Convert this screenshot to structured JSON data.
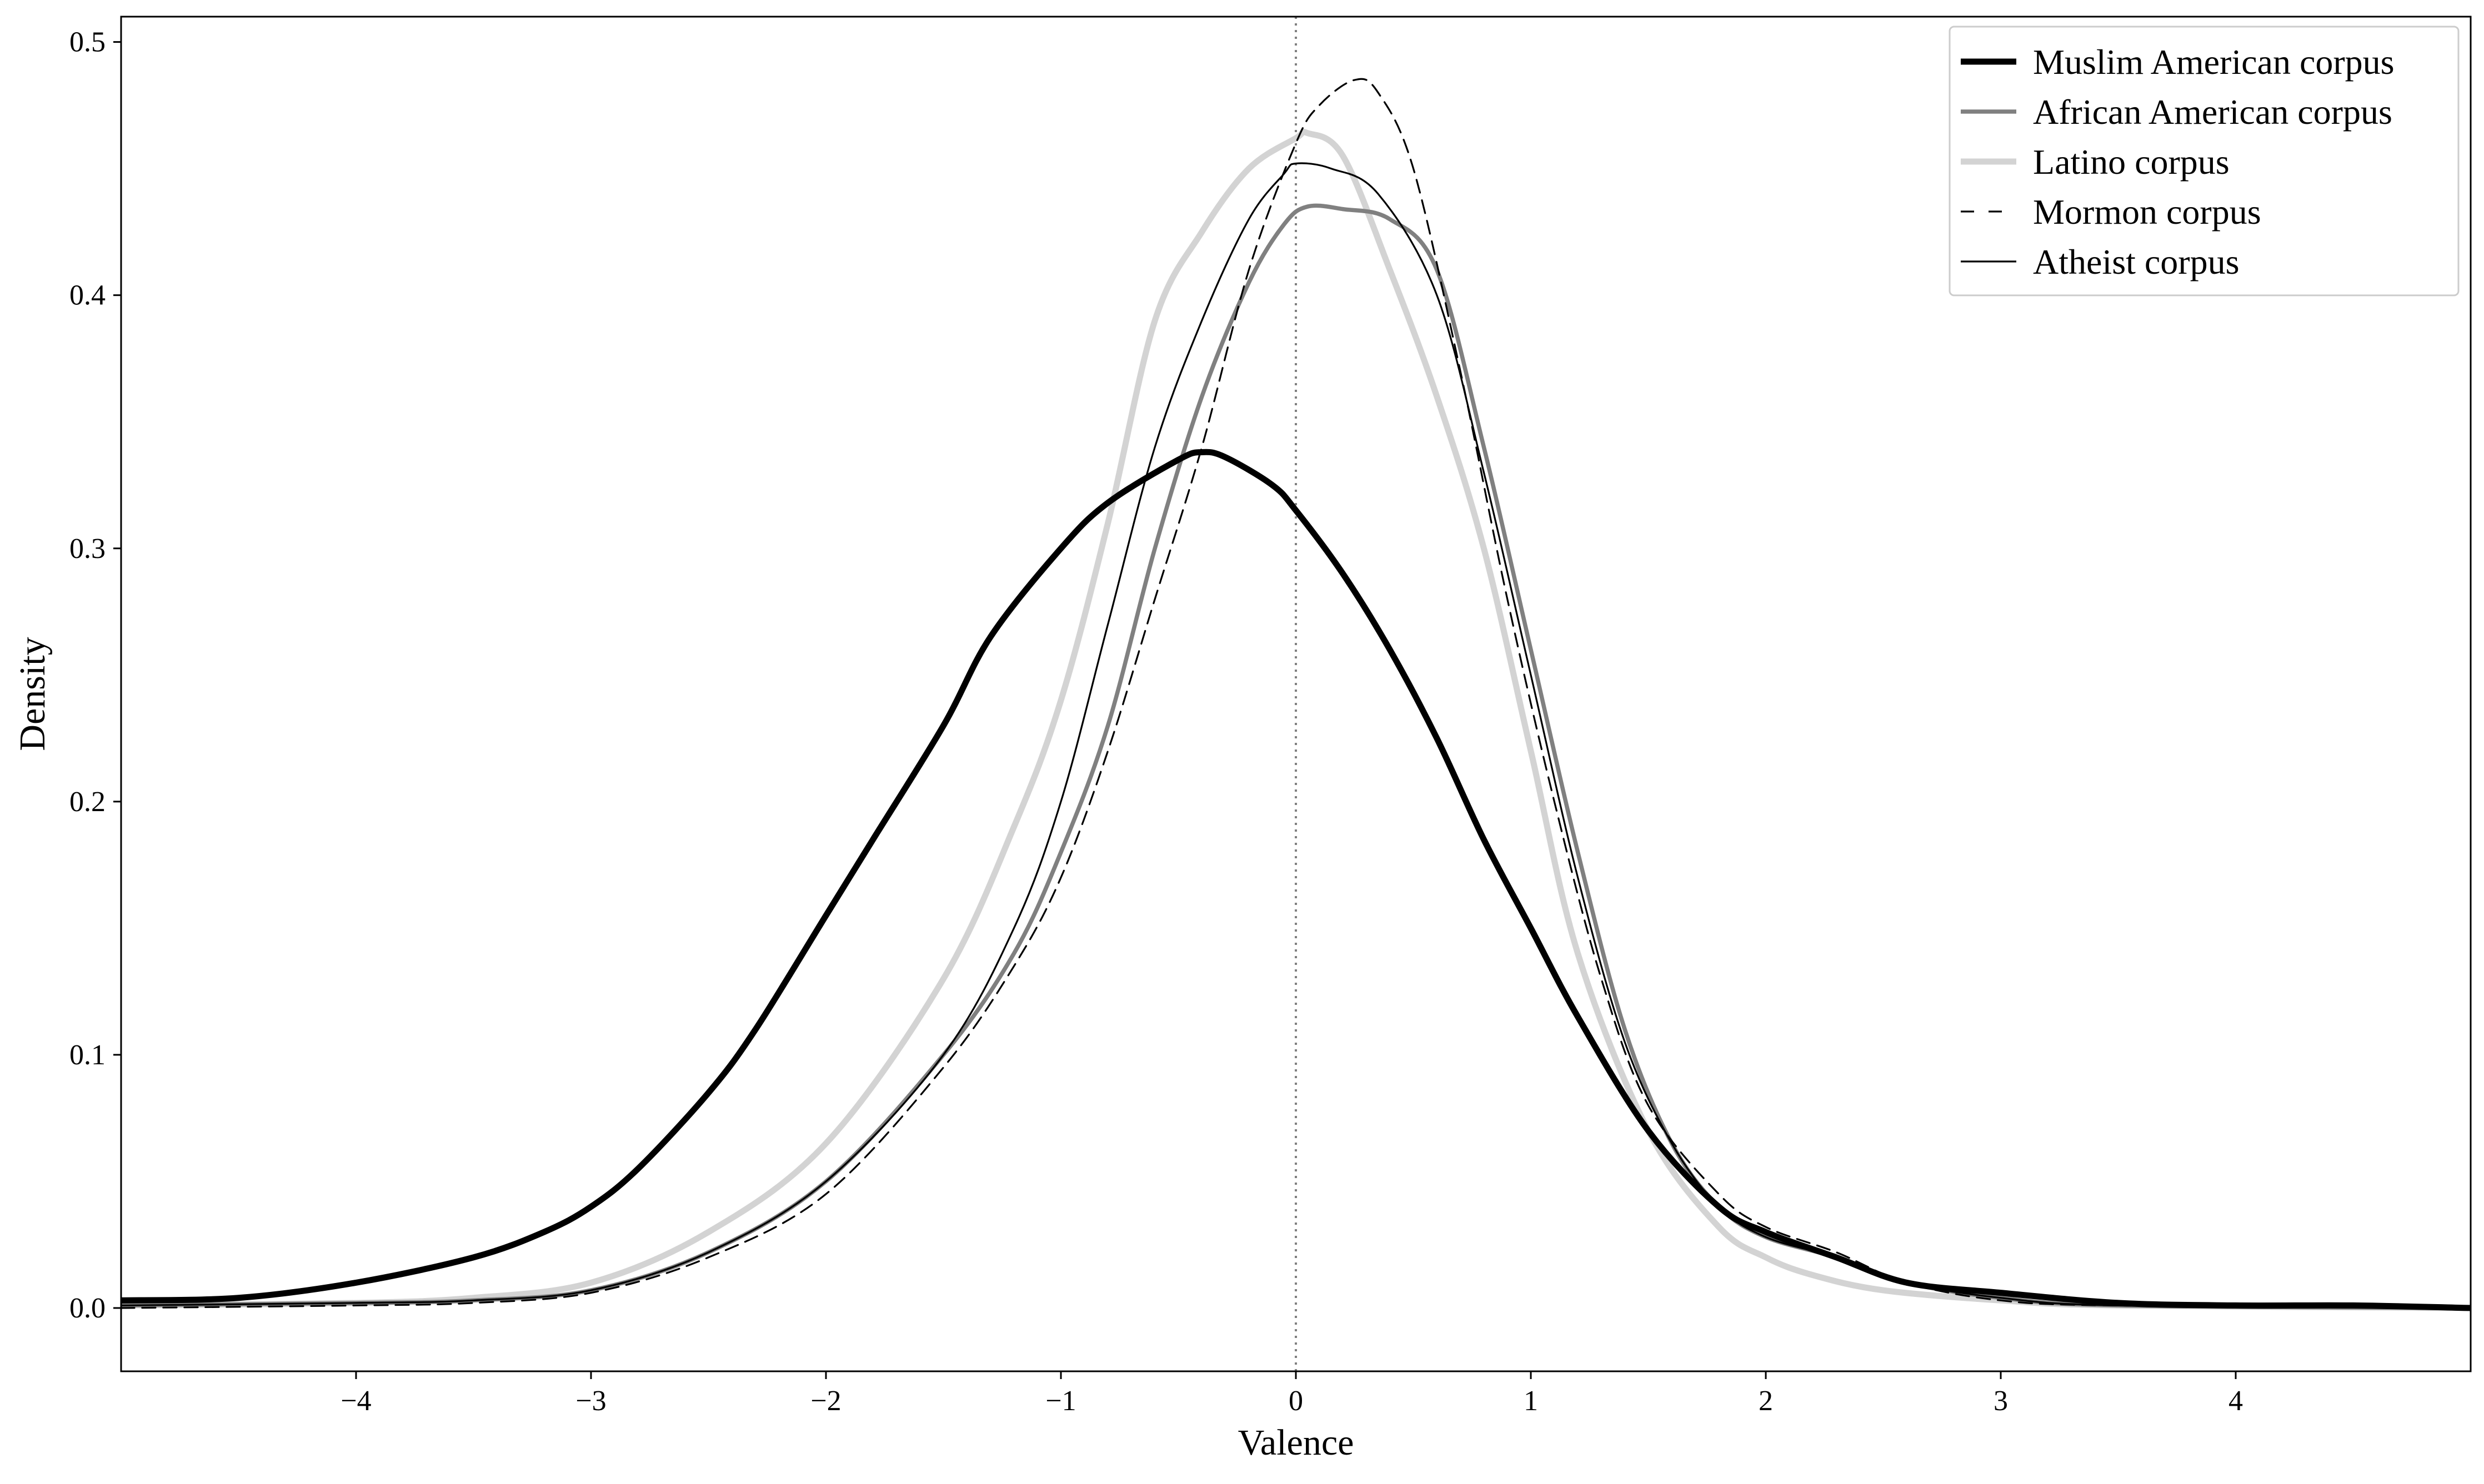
{
  "chart_data": {
    "type": "line",
    "title": "",
    "xlabel": "Valence",
    "ylabel": "Density",
    "xlim": [
      -5.0,
      5.0
    ],
    "ylim": [
      -0.025,
      0.51
    ],
    "xticks": [
      -4,
      -3,
      -2,
      -1,
      0,
      1,
      2,
      3,
      4
    ],
    "xtick_labels": [
      "−4",
      "−3",
      "−2",
      "−1",
      "0",
      "1",
      "2",
      "3",
      "4"
    ],
    "yticks": [
      0.0,
      0.1,
      0.2,
      0.3,
      0.4,
      0.5
    ],
    "ytick_labels": [
      "0.0",
      "0.1",
      "0.2",
      "0.3",
      "0.4",
      "0.5"
    ],
    "grid": false,
    "legend_position": "top-right",
    "reference_line": {
      "axis": "x",
      "value": 0,
      "style": "dotted",
      "color": "#808080"
    },
    "series": [
      {
        "name": "Muslim American corpus",
        "color": "#000000",
        "width": "thick",
        "dash": "solid",
        "points": [
          [
            -5.0,
            0.003
          ],
          [
            -4.5,
            0.004
          ],
          [
            -4.0,
            0.01
          ],
          [
            -3.5,
            0.02
          ],
          [
            -3.2,
            0.03
          ],
          [
            -3.0,
            0.04
          ],
          [
            -2.8,
            0.055
          ],
          [
            -2.5,
            0.085
          ],
          [
            -2.3,
            0.11
          ],
          [
            -2.0,
            0.155
          ],
          [
            -1.8,
            0.185
          ],
          [
            -1.5,
            0.23
          ],
          [
            -1.3,
            0.265
          ],
          [
            -1.0,
            0.3
          ],
          [
            -0.8,
            0.318
          ],
          [
            -0.5,
            0.335
          ],
          [
            -0.4,
            0.338
          ],
          [
            -0.3,
            0.336
          ],
          [
            -0.1,
            0.325
          ],
          [
            0.0,
            0.315
          ],
          [
            0.2,
            0.29
          ],
          [
            0.4,
            0.26
          ],
          [
            0.6,
            0.225
          ],
          [
            0.8,
            0.185
          ],
          [
            1.0,
            0.15
          ],
          [
            1.2,
            0.115
          ],
          [
            1.5,
            0.07
          ],
          [
            1.8,
            0.04
          ],
          [
            2.0,
            0.03
          ],
          [
            2.3,
            0.02
          ],
          [
            2.6,
            0.01
          ],
          [
            3.0,
            0.006
          ],
          [
            3.5,
            0.002
          ],
          [
            4.0,
            0.001
          ],
          [
            4.5,
            0.001
          ],
          [
            5.0,
            0.0
          ]
        ]
      },
      {
        "name": "African American corpus",
        "color": "#808080",
        "width": "medium",
        "dash": "solid",
        "points": [
          [
            -5.0,
            0.001
          ],
          [
            -4.0,
            0.002
          ],
          [
            -3.5,
            0.003
          ],
          [
            -3.0,
            0.007
          ],
          [
            -2.5,
            0.022
          ],
          [
            -2.0,
            0.05
          ],
          [
            -1.5,
            0.1
          ],
          [
            -1.2,
            0.14
          ],
          [
            -1.0,
            0.18
          ],
          [
            -0.8,
            0.23
          ],
          [
            -0.6,
            0.3
          ],
          [
            -0.4,
            0.36
          ],
          [
            -0.2,
            0.405
          ],
          [
            -0.05,
            0.428
          ],
          [
            0.05,
            0.435
          ],
          [
            0.2,
            0.434
          ],
          [
            0.4,
            0.43
          ],
          [
            0.6,
            0.41
          ],
          [
            0.8,
            0.34
          ],
          [
            1.0,
            0.26
          ],
          [
            1.2,
            0.18
          ],
          [
            1.4,
            0.11
          ],
          [
            1.6,
            0.065
          ],
          [
            1.8,
            0.04
          ],
          [
            2.0,
            0.028
          ],
          [
            2.3,
            0.02
          ],
          [
            2.6,
            0.01
          ],
          [
            3.0,
            0.004
          ],
          [
            3.5,
            0.001
          ],
          [
            5.0,
            0.0
          ]
        ]
      },
      {
        "name": "Latino corpus",
        "color": "#d3d3d3",
        "width": "thick",
        "dash": "solid",
        "points": [
          [
            -5.0,
            0.001
          ],
          [
            -4.0,
            0.002
          ],
          [
            -3.5,
            0.004
          ],
          [
            -3.0,
            0.01
          ],
          [
            -2.5,
            0.03
          ],
          [
            -2.0,
            0.065
          ],
          [
            -1.5,
            0.13
          ],
          [
            -1.2,
            0.19
          ],
          [
            -1.0,
            0.24
          ],
          [
            -0.8,
            0.31
          ],
          [
            -0.6,
            0.39
          ],
          [
            -0.4,
            0.425
          ],
          [
            -0.2,
            0.45
          ],
          [
            0.0,
            0.462
          ],
          [
            0.05,
            0.464
          ],
          [
            0.2,
            0.455
          ],
          [
            0.4,
            0.41
          ],
          [
            0.6,
            0.36
          ],
          [
            0.8,
            0.3
          ],
          [
            1.0,
            0.22
          ],
          [
            1.2,
            0.14
          ],
          [
            1.5,
            0.07
          ],
          [
            1.8,
            0.032
          ],
          [
            2.0,
            0.02
          ],
          [
            2.2,
            0.013
          ],
          [
            2.5,
            0.007
          ],
          [
            3.0,
            0.003
          ],
          [
            3.5,
            0.001
          ],
          [
            5.0,
            0.0
          ]
        ]
      },
      {
        "name": "Mormon corpus",
        "color": "#000000",
        "width": "thin",
        "dash": "dashed",
        "points": [
          [
            -5.0,
            0.0
          ],
          [
            -4.0,
            0.001
          ],
          [
            -3.5,
            0.002
          ],
          [
            -3.0,
            0.006
          ],
          [
            -2.5,
            0.02
          ],
          [
            -2.0,
            0.045
          ],
          [
            -1.5,
            0.095
          ],
          [
            -1.2,
            0.135
          ],
          [
            -1.0,
            0.17
          ],
          [
            -0.8,
            0.22
          ],
          [
            -0.6,
            0.28
          ],
          [
            -0.4,
            0.34
          ],
          [
            -0.2,
            0.41
          ],
          [
            0.0,
            0.46
          ],
          [
            0.1,
            0.475
          ],
          [
            0.25,
            0.485
          ],
          [
            0.35,
            0.48
          ],
          [
            0.5,
            0.45
          ],
          [
            0.7,
            0.37
          ],
          [
            0.9,
            0.28
          ],
          [
            1.1,
            0.2
          ],
          [
            1.3,
            0.13
          ],
          [
            1.5,
            0.08
          ],
          [
            1.8,
            0.045
          ],
          [
            2.0,
            0.032
          ],
          [
            2.3,
            0.022
          ],
          [
            2.6,
            0.01
          ],
          [
            3.0,
            0.003
          ],
          [
            3.5,
            0.001
          ],
          [
            5.0,
            0.0
          ]
        ]
      },
      {
        "name": "Atheist corpus",
        "color": "#000000",
        "width": "thin",
        "dash": "solid",
        "points": [
          [
            -5.0,
            0.001
          ],
          [
            -4.0,
            0.002
          ],
          [
            -3.5,
            0.003
          ],
          [
            -3.0,
            0.007
          ],
          [
            -2.5,
            0.022
          ],
          [
            -2.0,
            0.05
          ],
          [
            -1.5,
            0.1
          ],
          [
            -1.2,
            0.15
          ],
          [
            -1.0,
            0.2
          ],
          [
            -0.8,
            0.27
          ],
          [
            -0.6,
            0.34
          ],
          [
            -0.4,
            0.39
          ],
          [
            -0.2,
            0.43
          ],
          [
            -0.05,
            0.448
          ],
          [
            0.0,
            0.452
          ],
          [
            0.15,
            0.45
          ],
          [
            0.35,
            0.44
          ],
          [
            0.6,
            0.4
          ],
          [
            0.8,
            0.33
          ],
          [
            1.0,
            0.25
          ],
          [
            1.2,
            0.17
          ],
          [
            1.4,
            0.105
          ],
          [
            1.6,
            0.065
          ],
          [
            1.8,
            0.04
          ],
          [
            2.0,
            0.028
          ],
          [
            2.3,
            0.02
          ],
          [
            2.6,
            0.01
          ],
          [
            3.0,
            0.004
          ],
          [
            3.5,
            0.001
          ],
          [
            5.0,
            0.0
          ]
        ]
      }
    ]
  }
}
